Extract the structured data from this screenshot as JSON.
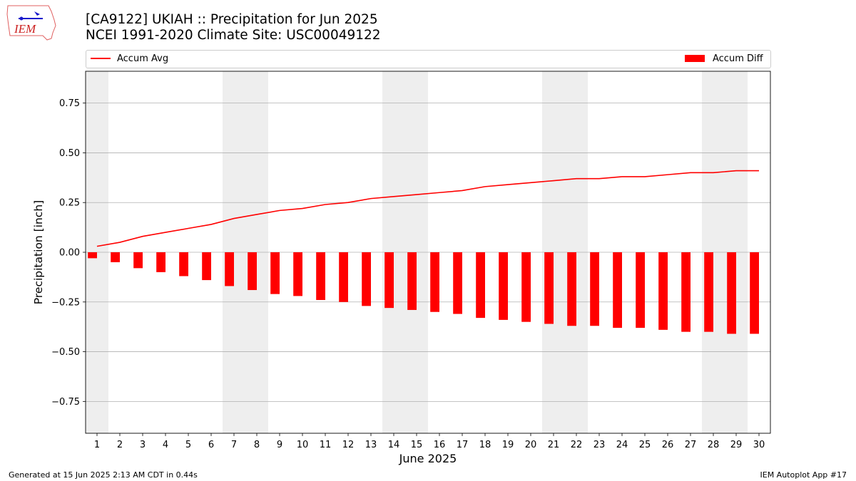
{
  "header": {
    "logo_text": "IEM",
    "title_line1": "[CA9122] UKIAH :: Precipitation for Jun 2025",
    "title_line2": "NCEI 1991-2020 Climate Site: USC00049122"
  },
  "footer": {
    "left": "Generated at 15 Jun 2025 2:13 AM CDT in 0.44s",
    "right": "IEM Autoplot App #17"
  },
  "colors": {
    "line": "#ff0000",
    "bar": "#ff0000",
    "weekend_shade": "#eeeeee",
    "grid": "#b0b0b0",
    "logo": "#1a1acc"
  },
  "chart_data": {
    "type": "bar",
    "xlabel": "June 2025",
    "ylabel": "Precipitation [inch]",
    "ylim": [
      -0.91,
      0.91
    ],
    "yticks": [
      -0.75,
      -0.5,
      -0.25,
      0.0,
      0.25,
      0.5,
      0.75
    ],
    "ytick_labels": [
      "−0.75",
      "−0.50",
      "−0.25",
      "0.00",
      "0.25",
      "0.50",
      "0.75"
    ],
    "grid": "horizontal",
    "legend_placement": "top",
    "categories": [
      "1",
      "2",
      "3",
      "4",
      "5",
      "6",
      "7",
      "8",
      "9",
      "10",
      "11",
      "12",
      "13",
      "14",
      "15",
      "16",
      "17",
      "18",
      "19",
      "20",
      "21",
      "22",
      "23",
      "24",
      "25",
      "26",
      "27",
      "28",
      "29",
      "30"
    ],
    "shaded_days": [
      1,
      7,
      8,
      14,
      15,
      21,
      22,
      28,
      29
    ],
    "series": [
      {
        "name": "Accum Avg",
        "kind": "line",
        "values": [
          0.03,
          0.05,
          0.08,
          0.1,
          0.12,
          0.14,
          0.17,
          0.19,
          0.21,
          0.22,
          0.24,
          0.25,
          0.27,
          0.28,
          0.29,
          0.3,
          0.31,
          0.33,
          0.34,
          0.35,
          0.36,
          0.37,
          0.37,
          0.38,
          0.38,
          0.39,
          0.4,
          0.4,
          0.41,
          0.41
        ]
      },
      {
        "name": "Accum Diff",
        "kind": "bar",
        "values": [
          -0.03,
          -0.05,
          -0.08,
          -0.1,
          -0.12,
          -0.14,
          -0.17,
          -0.19,
          -0.21,
          -0.22,
          -0.24,
          -0.25,
          -0.27,
          -0.28,
          -0.29,
          -0.3,
          -0.31,
          -0.33,
          -0.34,
          -0.35,
          -0.36,
          -0.37,
          -0.37,
          -0.38,
          -0.38,
          -0.39,
          -0.4,
          -0.4,
          -0.41,
          -0.41
        ]
      }
    ]
  }
}
